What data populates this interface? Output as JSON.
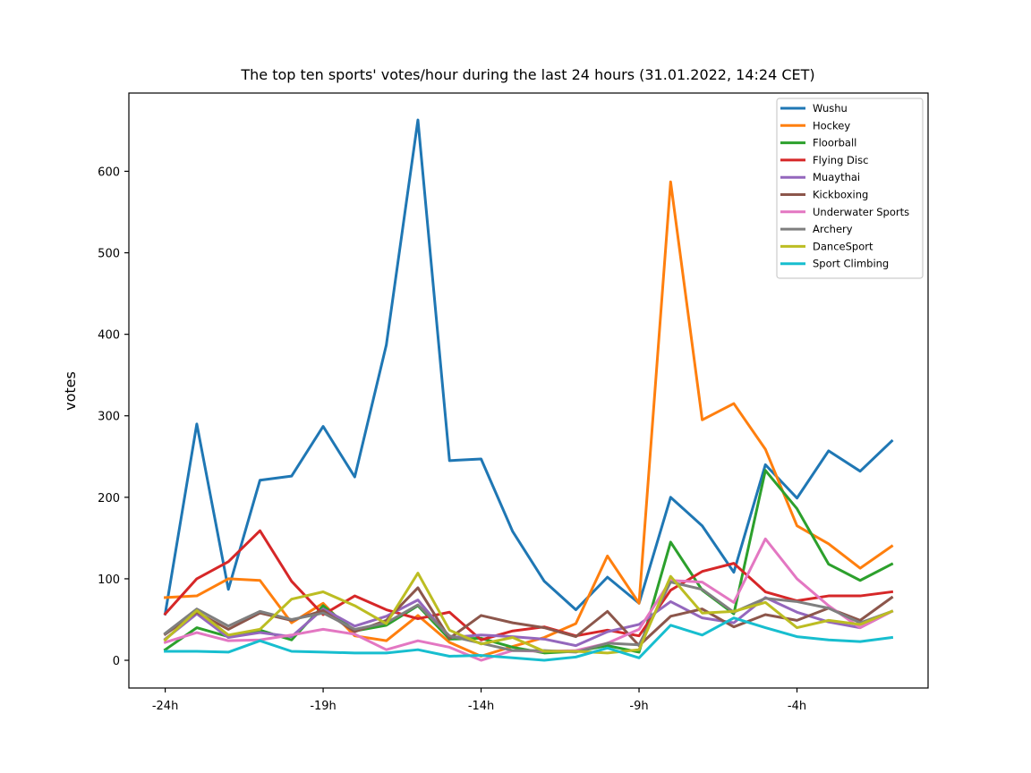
{
  "chart_data": {
    "type": "line",
    "title": "The top ten sports' votes/hour during the last 24 hours (31.01.2022, 14:24 CET)",
    "xlabel": "",
    "ylabel": "votes",
    "x": [
      -24,
      -23,
      -22,
      -21,
      -20,
      -19,
      -18,
      -17,
      -16,
      -15,
      -14,
      -13,
      -12,
      -11,
      -10,
      -9,
      -8,
      -7,
      -6,
      -5,
      -4,
      -3,
      -2,
      -1
    ],
    "xticks": [
      -24,
      -19,
      -14,
      -9,
      -4
    ],
    "xtick_labels": [
      "-24h",
      "-19h",
      "-14h",
      "-9h",
      "-4h"
    ],
    "yticks": [
      0,
      100,
      200,
      300,
      400,
      500,
      600
    ],
    "ylim": [
      -34,
      696
    ],
    "xlim": [
      -25.15,
      0.15
    ],
    "grid": false,
    "legend_position": "top-right",
    "series": [
      {
        "name": "Wushu",
        "color": "#1f77b4",
        "values": [
          57,
          290,
          87,
          221,
          226,
          287,
          225,
          387,
          663,
          245,
          247,
          158,
          97,
          62,
          102,
          70,
          200,
          165,
          108,
          240,
          199,
          257,
          232,
          269
        ]
      },
      {
        "name": "Hockey",
        "color": "#ff7f0e",
        "values": [
          77,
          79,
          100,
          98,
          46,
          70,
          30,
          24,
          55,
          22,
          5,
          17,
          28,
          45,
          128,
          70,
          587,
          295,
          315,
          259,
          165,
          143,
          113,
          140
        ]
      },
      {
        "name": "Floorball",
        "color": "#2ca02c",
        "values": [
          13,
          40,
          29,
          37,
          25,
          67,
          36,
          43,
          67,
          26,
          27,
          16,
          9,
          11,
          18,
          10,
          145,
          86,
          57,
          233,
          186,
          118,
          98,
          118
        ]
      },
      {
        "name": "Flying Disc",
        "color": "#d62728",
        "values": [
          57,
          100,
          121,
          159,
          97,
          56,
          79,
          62,
          51,
          59,
          25,
          36,
          41,
          30,
          37,
          30,
          86,
          109,
          119,
          84,
          73,
          79,
          79,
          84
        ]
      },
      {
        "name": "Muaythai",
        "color": "#9467bd",
        "values": [
          26,
          57,
          28,
          34,
          29,
          63,
          42,
          54,
          74,
          28,
          31,
          29,
          26,
          18,
          35,
          44,
          72,
          52,
          46,
          77,
          59,
          47,
          40,
          60
        ]
      },
      {
        "name": "Kickboxing",
        "color": "#8c564b",
        "values": [
          32,
          59,
          38,
          58,
          49,
          61,
          35,
          49,
          89,
          27,
          55,
          46,
          40,
          29,
          60,
          18,
          54,
          63,
          41,
          56,
          49,
          64,
          49,
          77
        ]
      },
      {
        "name": "Underwater Sports",
        "color": "#e377c2",
        "values": [
          22,
          34,
          24,
          25,
          31,
          38,
          32,
          13,
          24,
          16,
          0,
          12,
          11,
          12,
          21,
          38,
          98,
          96,
          71,
          149,
          100,
          67,
          40,
          60
        ]
      },
      {
        "name": "Archery",
        "color": "#7f7f7f",
        "values": [
          33,
          63,
          42,
          60,
          50,
          58,
          38,
          46,
          68,
          30,
          21,
          12,
          12,
          10,
          21,
          19,
          96,
          87,
          59,
          76,
          72,
          64,
          46,
          60
        ]
      },
      {
        "name": "DanceSport",
        "color": "#bcbd22",
        "values": [
          25,
          61,
          31,
          38,
          75,
          84,
          67,
          45,
          107,
          37,
          20,
          28,
          11,
          11,
          9,
          13,
          103,
          58,
          60,
          71,
          40,
          49,
          44,
          60
        ]
      },
      {
        "name": "Sport Climbing",
        "color": "#17becf",
        "values": [
          11,
          11,
          10,
          24,
          11,
          10,
          9,
          9,
          13,
          5,
          6,
          3,
          0,
          4,
          15,
          3,
          43,
          31,
          52,
          40,
          29,
          25,
          23,
          28
        ]
      }
    ]
  }
}
